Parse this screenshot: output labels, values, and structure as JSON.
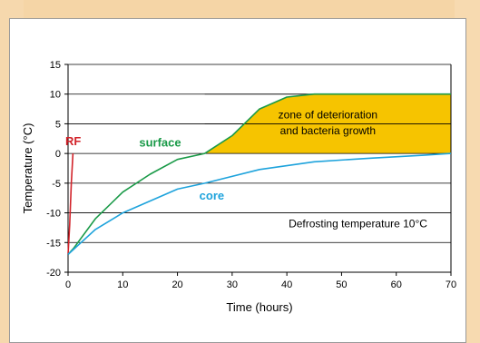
{
  "chart_data": {
    "type": "line",
    "xlabel": "Time (hours)",
    "ylabel": "Temperature (°C)",
    "xlim": [
      0,
      70
    ],
    "ylim": [
      -20,
      15
    ],
    "x_ticks": [
      0,
      10,
      20,
      30,
      40,
      50,
      60,
      70
    ],
    "y_ticks": [
      15,
      10,
      5,
      0,
      -5,
      -10,
      -15,
      -20
    ],
    "grid": "horizontal",
    "series": [
      {
        "name": "RF",
        "color": "#d2232a",
        "x": [
          0,
          0.3,
          0.6,
          0.9
        ],
        "y": [
          -17,
          -12,
          -5,
          0
        ]
      },
      {
        "name": "surface",
        "color": "#1a9a48",
        "x": [
          0,
          1,
          5,
          10,
          15,
          20,
          25,
          30,
          35,
          40,
          45,
          50,
          60,
          70
        ],
        "y": [
          -17,
          -16,
          -11,
          -6.5,
          -3.5,
          -1,
          0,
          3,
          7.5,
          9.5,
          10,
          10,
          10,
          10
        ]
      },
      {
        "name": "core",
        "color": "#1ea3dc",
        "x": [
          0,
          5,
          10,
          20,
          25,
          35,
          45,
          55,
          65,
          70
        ],
        "y": [
          -17,
          -12.8,
          -10,
          -6,
          -5,
          -2.7,
          -1.4,
          -0.8,
          -0.3,
          0
        ]
      }
    ],
    "annotations": {
      "zone_line1": "zone of deterioration",
      "zone_line2": "and bacteria growth",
      "zone_color": "#f6c400",
      "defrost": "Defrosting temperature 10°C"
    }
  }
}
